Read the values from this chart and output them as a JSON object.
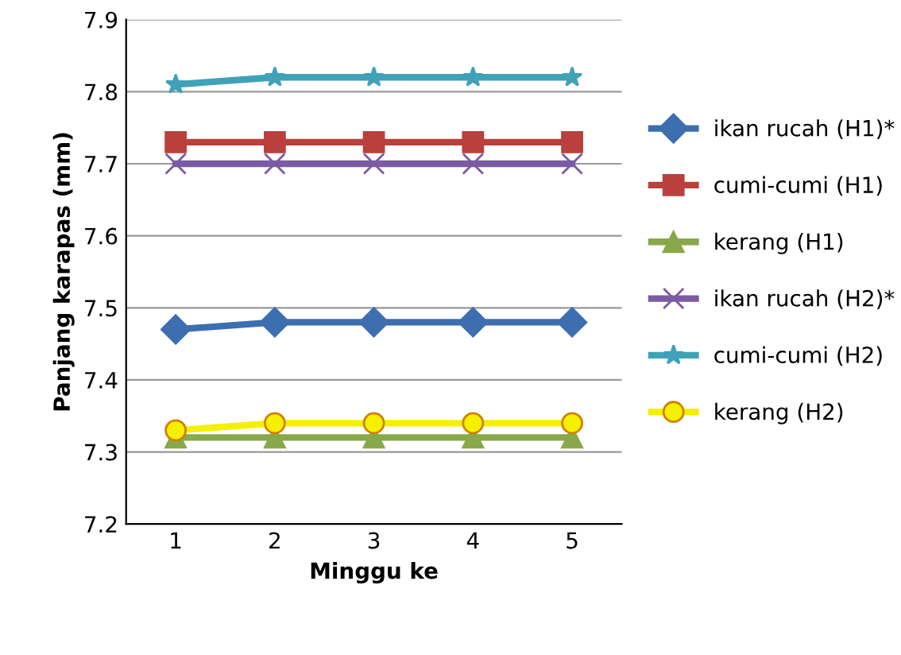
{
  "chart_data": {
    "type": "line",
    "xlabel": "Minggu ke",
    "ylabel": "Panjang karapas (mm)",
    "categories": [
      "1",
      "2",
      "3",
      "4",
      "5"
    ],
    "series": [
      {
        "name": "ikan rucah (H1)*",
        "color": "#3d6fb0",
        "marker": "diamond",
        "values": [
          7.47,
          7.48,
          7.48,
          7.48,
          7.48
        ]
      },
      {
        "name": "cumi-cumi (H1)",
        "color": "#b9403c",
        "marker": "square",
        "values": [
          7.73,
          7.73,
          7.73,
          7.73,
          7.73
        ]
      },
      {
        "name": "kerang (H1)",
        "color": "#88a84a",
        "marker": "triangle",
        "values": [
          7.32,
          7.32,
          7.32,
          7.32,
          7.32
        ]
      },
      {
        "name": "ikan rucah (H2)*",
        "color": "#7b5ba3",
        "marker": "cross",
        "values": [
          7.7,
          7.7,
          7.7,
          7.7,
          7.7
        ]
      },
      {
        "name": "cumi-cumi (H2)",
        "color": "#3fa2b8",
        "marker": "star",
        "values": [
          7.81,
          7.82,
          7.82,
          7.82,
          7.82
        ]
      },
      {
        "name": "kerang (H2)",
        "color": "#f5f000",
        "marker": "circle",
        "values": [
          7.33,
          7.34,
          7.34,
          7.34,
          7.34
        ]
      }
    ],
    "ylim": [
      7.2,
      7.9
    ],
    "yticks": [
      7.2,
      7.3,
      7.4,
      7.5,
      7.6,
      7.7,
      7.8,
      7.9
    ],
    "grid": "y",
    "legend": "right"
  }
}
